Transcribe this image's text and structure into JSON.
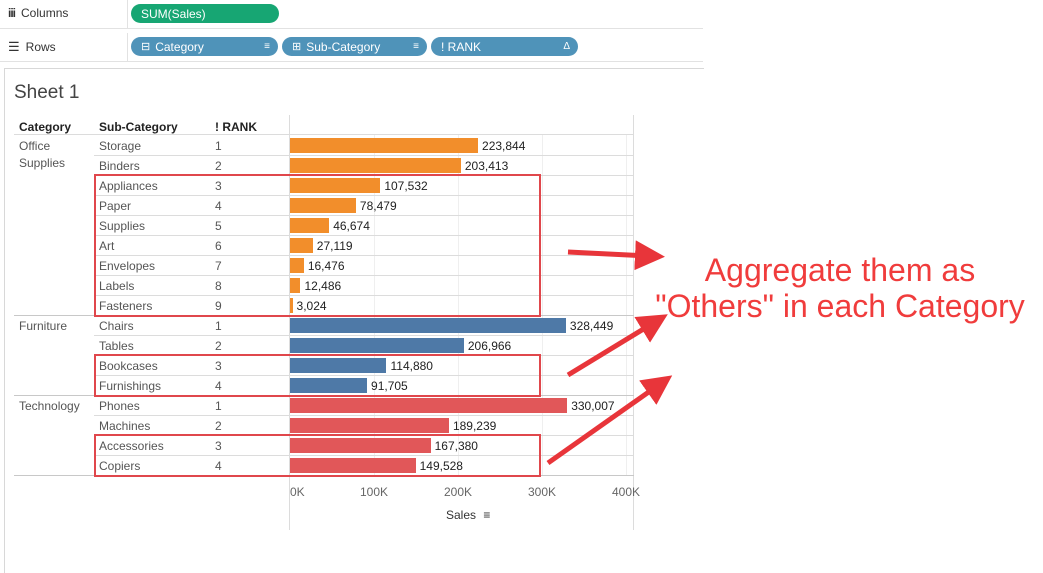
{
  "shelves": {
    "columns": {
      "label": "Columns",
      "icon": "columns-icon",
      "pills": [
        {
          "text": "SUM(Sales)"
        }
      ]
    },
    "rows": {
      "label": "Rows",
      "icon": "rows-icon",
      "pills": [
        {
          "text": "Category"
        },
        {
          "text": "Sub-Category"
        },
        {
          "text": "! RANK",
          "suffix": "Δ"
        }
      ]
    }
  },
  "sheet": {
    "title": "Sheet 1"
  },
  "table": {
    "headers": [
      "Category",
      "Sub-Category",
      "! RANK"
    ],
    "categories": [
      "Office\nSupplies",
      "Furniture",
      "Technology"
    ],
    "category_colors": {
      "Office Supplies": "#f28e2b",
      "Furniture": "#4e79a7",
      "Technology": "#e15759"
    }
  },
  "annotation": {
    "text_line1": "Aggregate them as",
    "text_line2": "\"Others\" in each Category",
    "color": "#f03c3c"
  },
  "chart_data": {
    "type": "bar",
    "orientation": "horizontal",
    "xlabel": "Sales",
    "xlim": [
      0,
      400000
    ],
    "x_ticks": [
      "0K",
      "100K",
      "200K",
      "300K",
      "400K"
    ],
    "rows": [
      {
        "category": "Office Supplies",
        "sub": "Storage",
        "rank": "1",
        "value": 223844,
        "label": "223,844"
      },
      {
        "category": "Office Supplies",
        "sub": "Binders",
        "rank": "2",
        "value": 203413,
        "label": "203,413"
      },
      {
        "category": "Office Supplies",
        "sub": "Appliances",
        "rank": "3",
        "value": 107532,
        "label": "107,532"
      },
      {
        "category": "Office Supplies",
        "sub": "Paper",
        "rank": "4",
        "value": 78479,
        "label": "78,479"
      },
      {
        "category": "Office Supplies",
        "sub": "Supplies",
        "rank": "5",
        "value": 46674,
        "label": "46,674"
      },
      {
        "category": "Office Supplies",
        "sub": "Art",
        "rank": "6",
        "value": 27119,
        "label": "27,119"
      },
      {
        "category": "Office Supplies",
        "sub": "Envelopes",
        "rank": "7",
        "value": 16476,
        "label": "16,476"
      },
      {
        "category": "Office Supplies",
        "sub": "Labels",
        "rank": "8",
        "value": 12486,
        "label": "12,486"
      },
      {
        "category": "Office Supplies",
        "sub": "Fasteners",
        "rank": "9",
        "value": 3024,
        "label": "3,024"
      },
      {
        "category": "Furniture",
        "sub": "Chairs",
        "rank": "1",
        "value": 328449,
        "label": "328,449"
      },
      {
        "category": "Furniture",
        "sub": "Tables",
        "rank": "2",
        "value": 206966,
        "label": "206,966"
      },
      {
        "category": "Furniture",
        "sub": "Bookcases",
        "rank": "3",
        "value": 114880,
        "label": "114,880"
      },
      {
        "category": "Furniture",
        "sub": "Furnishings",
        "rank": "4",
        "value": 91705,
        "label": "91,705"
      },
      {
        "category": "Technology",
        "sub": "Phones",
        "rank": "1",
        "value": 330007,
        "label": "330,007"
      },
      {
        "category": "Technology",
        "sub": "Machines",
        "rank": "2",
        "value": 189239,
        "label": "189,239"
      },
      {
        "category": "Technology",
        "sub": "Accessories",
        "rank": "3",
        "value": 167380,
        "label": "167,380"
      },
      {
        "category": "Technology",
        "sub": "Copiers",
        "rank": "4",
        "value": 149528,
        "label": "149,528"
      }
    ]
  }
}
